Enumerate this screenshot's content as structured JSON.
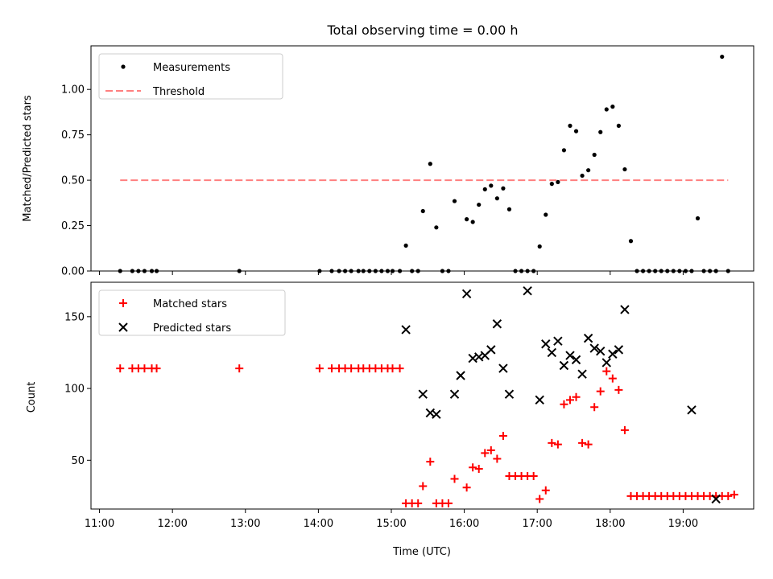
{
  "chart_data": {
    "title": "Total observing time = 0.00 h",
    "xlabel": "Time (UTC)",
    "x_tick_labels": [
      "11:00",
      "12:00",
      "13:00",
      "14:00",
      "15:00",
      "16:00",
      "17:00",
      "18:00",
      "19:00"
    ],
    "panels": [
      {
        "type": "scatter",
        "ylabel": "Matched/Predicted stars",
        "ylim": [
          0,
          1.24
        ],
        "y_ticks": [
          "0.00",
          "0.25",
          "0.50",
          "0.75",
          "1.00"
        ],
        "legend_position": "top-left",
        "series": [
          {
            "name": "Measurements",
            "marker": "dot",
            "color": "#000000",
            "x": [
              "11:17",
              "11:27",
              "11:32",
              "11:37",
              "11:43",
              "11:47",
              "12:55",
              "14:01",
              "14:11",
              "14:17",
              "14:22",
              "14:27",
              "14:33",
              "14:37",
              "14:42",
              "14:47",
              "14:52",
              "14:57",
              "15:01",
              "15:07",
              "15:12",
              "15:17",
              "15:22",
              "15:26",
              "15:32",
              "15:37",
              "15:42",
              "15:47",
              "15:52",
              "16:02",
              "16:07",
              "16:12",
              "16:17",
              "16:22",
              "16:27",
              "16:32",
              "16:37",
              "16:42",
              "16:47",
              "16:52",
              "16:57",
              "17:02",
              "17:07",
              "17:12",
              "17:17",
              "17:22",
              "17:27",
              "17:32",
              "17:37",
              "17:42",
              "17:47",
              "17:52",
              "17:57",
              "18:02",
              "18:07",
              "18:12",
              "18:17",
              "18:22",
              "18:27",
              "18:32",
              "18:37",
              "18:42",
              "18:47",
              "18:52",
              "18:57",
              "19:02",
              "19:07",
              "19:12",
              "19:17",
              "19:22",
              "19:27",
              "19:32",
              "19:37"
            ],
            "y": [
              0,
              0,
              0,
              0,
              0,
              0,
              0,
              0,
              0,
              0,
              0,
              0,
              0,
              0,
              0,
              0,
              0,
              0,
              0,
              0,
              0.14,
              0,
              0,
              0.33,
              0.59,
              0.24,
              0,
              0,
              0.385,
              0.285,
              0.27,
              0.365,
              0.45,
              0.47,
              0.4,
              0.455,
              0.34,
              0,
              0,
              0,
              0,
              0.135,
              0.31,
              0.48,
              0.49,
              0.665,
              0.8,
              0.77,
              0.525,
              0.555,
              0.64,
              0.765,
              0.89,
              0.905,
              0.8,
              0.56,
              0.165,
              0,
              0,
              0,
              0,
              0,
              0,
              0,
              0,
              0,
              0,
              0.29,
              0,
              0,
              0,
              1.18,
              0
            ]
          },
          {
            "name": "Threshold",
            "type": "line",
            "style": "dashed",
            "color": "#ff7f7f",
            "x": [
              "11:17",
              "19:37"
            ],
            "y": [
              0.5,
              0.5
            ]
          }
        ]
      },
      {
        "type": "scatter",
        "ylabel": "Count",
        "ylim": [
          16,
          174
        ],
        "y_ticks": [
          "50",
          "100",
          "150"
        ],
        "legend_position": "top-left",
        "series": [
          {
            "name": "Matched stars",
            "marker": "plus",
            "color": "#ff0000",
            "x": [
              "11:17",
              "11:27",
              "11:32",
              "11:37",
              "11:43",
              "11:47",
              "12:55",
              "14:01",
              "14:11",
              "14:17",
              "14:22",
              "14:27",
              "14:33",
              "14:37",
              "14:42",
              "14:47",
              "14:52",
              "14:57",
              "15:01",
              "15:07",
              "15:12",
              "15:17",
              "15:22",
              "15:26",
              "15:32",
              "15:37",
              "15:42",
              "15:47",
              "15:52",
              "16:02",
              "16:07",
              "16:12",
              "16:17",
              "16:22",
              "16:27",
              "16:32",
              "16:37",
              "16:42",
              "16:47",
              "16:52",
              "16:57",
              "17:02",
              "17:07",
              "17:12",
              "17:17",
              "17:22",
              "17:27",
              "17:32",
              "17:37",
              "17:42",
              "17:47",
              "17:52",
              "17:57",
              "18:02",
              "18:07",
              "18:12",
              "18:17",
              "18:22",
              "18:27",
              "18:32",
              "18:37",
              "18:42",
              "18:47",
              "18:52",
              "18:57",
              "19:02",
              "19:07",
              "19:12",
              "19:17",
              "19:22",
              "19:27",
              "19:32",
              "19:37",
              "19:42"
            ],
            "y": [
              114,
              114,
              114,
              114,
              114,
              114,
              114,
              114,
              114,
              114,
              114,
              114,
              114,
              114,
              114,
              114,
              114,
              114,
              114,
              114,
              20,
              20,
              20,
              32,
              49,
              20,
              20,
              20,
              37,
              31,
              45,
              44,
              55,
              57,
              51,
              67,
              39,
              39,
              39,
              39,
              39,
              23,
              29,
              62,
              61,
              89,
              92,
              94,
              62,
              61,
              87,
              98,
              112,
              107,
              99,
              71,
              25,
              25,
              25,
              25,
              25,
              25,
              25,
              25,
              25,
              25,
              25,
              25,
              25,
              25,
              25,
              25,
              25,
              26
            ]
          },
          {
            "name": "Predicted stars",
            "marker": "x",
            "color": "#000000",
            "x": [
              "15:12",
              "15:26",
              "15:32",
              "15:37",
              "15:52",
              "15:57",
              "16:02",
              "16:07",
              "16:12",
              "16:17",
              "16:22",
              "16:27",
              "16:32",
              "16:37",
              "16:52",
              "17:02",
              "17:07",
              "17:12",
              "17:17",
              "17:22",
              "17:27",
              "17:32",
              "17:37",
              "17:42",
              "17:47",
              "17:52",
              "17:57",
              "18:02",
              "18:07",
              "18:12",
              "19:07",
              "19:27"
            ],
            "y": [
              141,
              96,
              83,
              82,
              96,
              109,
              166,
              121,
              122,
              123,
              127,
              145,
              114,
              96,
              168,
              92,
              131,
              125,
              133,
              116,
              123,
              120,
              110,
              135,
              128,
              126,
              118,
              124,
              127,
              155,
              85,
              23
            ]
          }
        ]
      }
    ]
  }
}
